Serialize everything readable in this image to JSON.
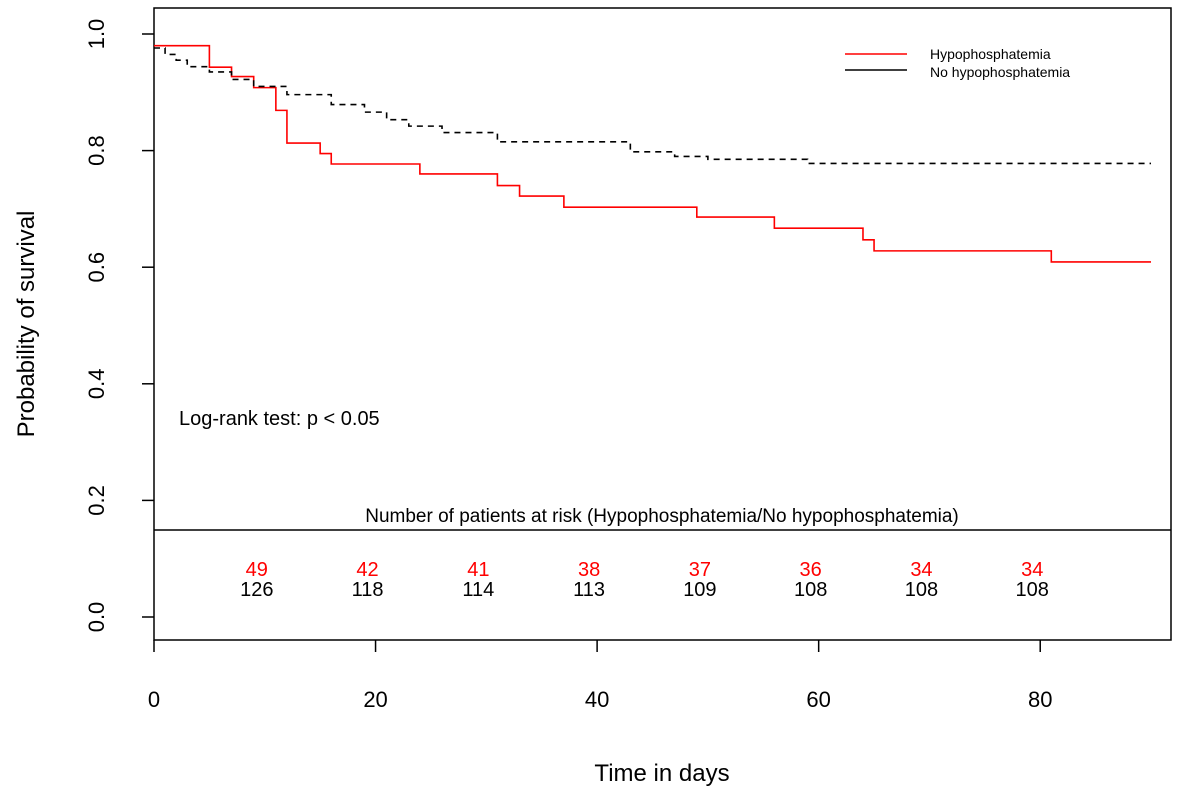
{
  "chart_data": {
    "type": "line",
    "subtype": "kaplan-meier step",
    "xlabel": "Time in days",
    "ylabel": "Probability of survival",
    "xlim": [
      0,
      90
    ],
    "ylim": [
      0,
      1.0
    ],
    "x_ticks": [
      "0",
      "20",
      "40",
      "60",
      "80"
    ],
    "y_ticks": [
      "0.0",
      "0.2",
      "0.4",
      "0.6",
      "0.8",
      "1.0"
    ],
    "grid": false,
    "legend_position": "top-right",
    "annotation": "Log-rank test: p < 0.05",
    "colors": {
      "hypo": "#ff0000",
      "nohypo": "#000000"
    },
    "series": [
      {
        "name": "Hypophosphatemia",
        "color": "#ff0000",
        "style": "solid",
        "x": [
          0,
          5,
          7,
          9,
          11,
          12,
          15,
          16,
          24,
          31,
          33,
          37,
          49,
          56,
          64,
          65,
          81,
          90
        ],
        "y": [
          0.98,
          0.943,
          0.927,
          0.908,
          0.869,
          0.813,
          0.795,
          0.777,
          0.76,
          0.74,
          0.722,
          0.703,
          0.686,
          0.667,
          0.647,
          0.628,
          0.609,
          0.609
        ]
      },
      {
        "name": "No hypophosphatemia",
        "color": "#000000",
        "style": "dashed",
        "x": [
          0,
          1,
          2,
          3,
          5,
          7,
          9,
          12,
          16,
          19,
          21,
          23,
          26,
          31,
          43,
          47,
          50,
          59,
          90
        ],
        "y": [
          0.976,
          0.965,
          0.955,
          0.944,
          0.935,
          0.922,
          0.91,
          0.896,
          0.879,
          0.866,
          0.853,
          0.842,
          0.831,
          0.815,
          0.798,
          0.79,
          0.785,
          0.778,
          0.778
        ]
      }
    ],
    "risk_table": {
      "title": "Number of patients at risk (Hypophosphatemia/No hypophosphatemia)",
      "times": [
        10,
        20,
        30,
        40,
        50,
        60,
        70,
        80
      ],
      "hypo": [
        "49",
        "42",
        "41",
        "38",
        "37",
        "36",
        "34",
        "34"
      ],
      "nohypo": [
        "126",
        "118",
        "114",
        "113",
        "109",
        "108",
        "108",
        "108"
      ]
    }
  }
}
